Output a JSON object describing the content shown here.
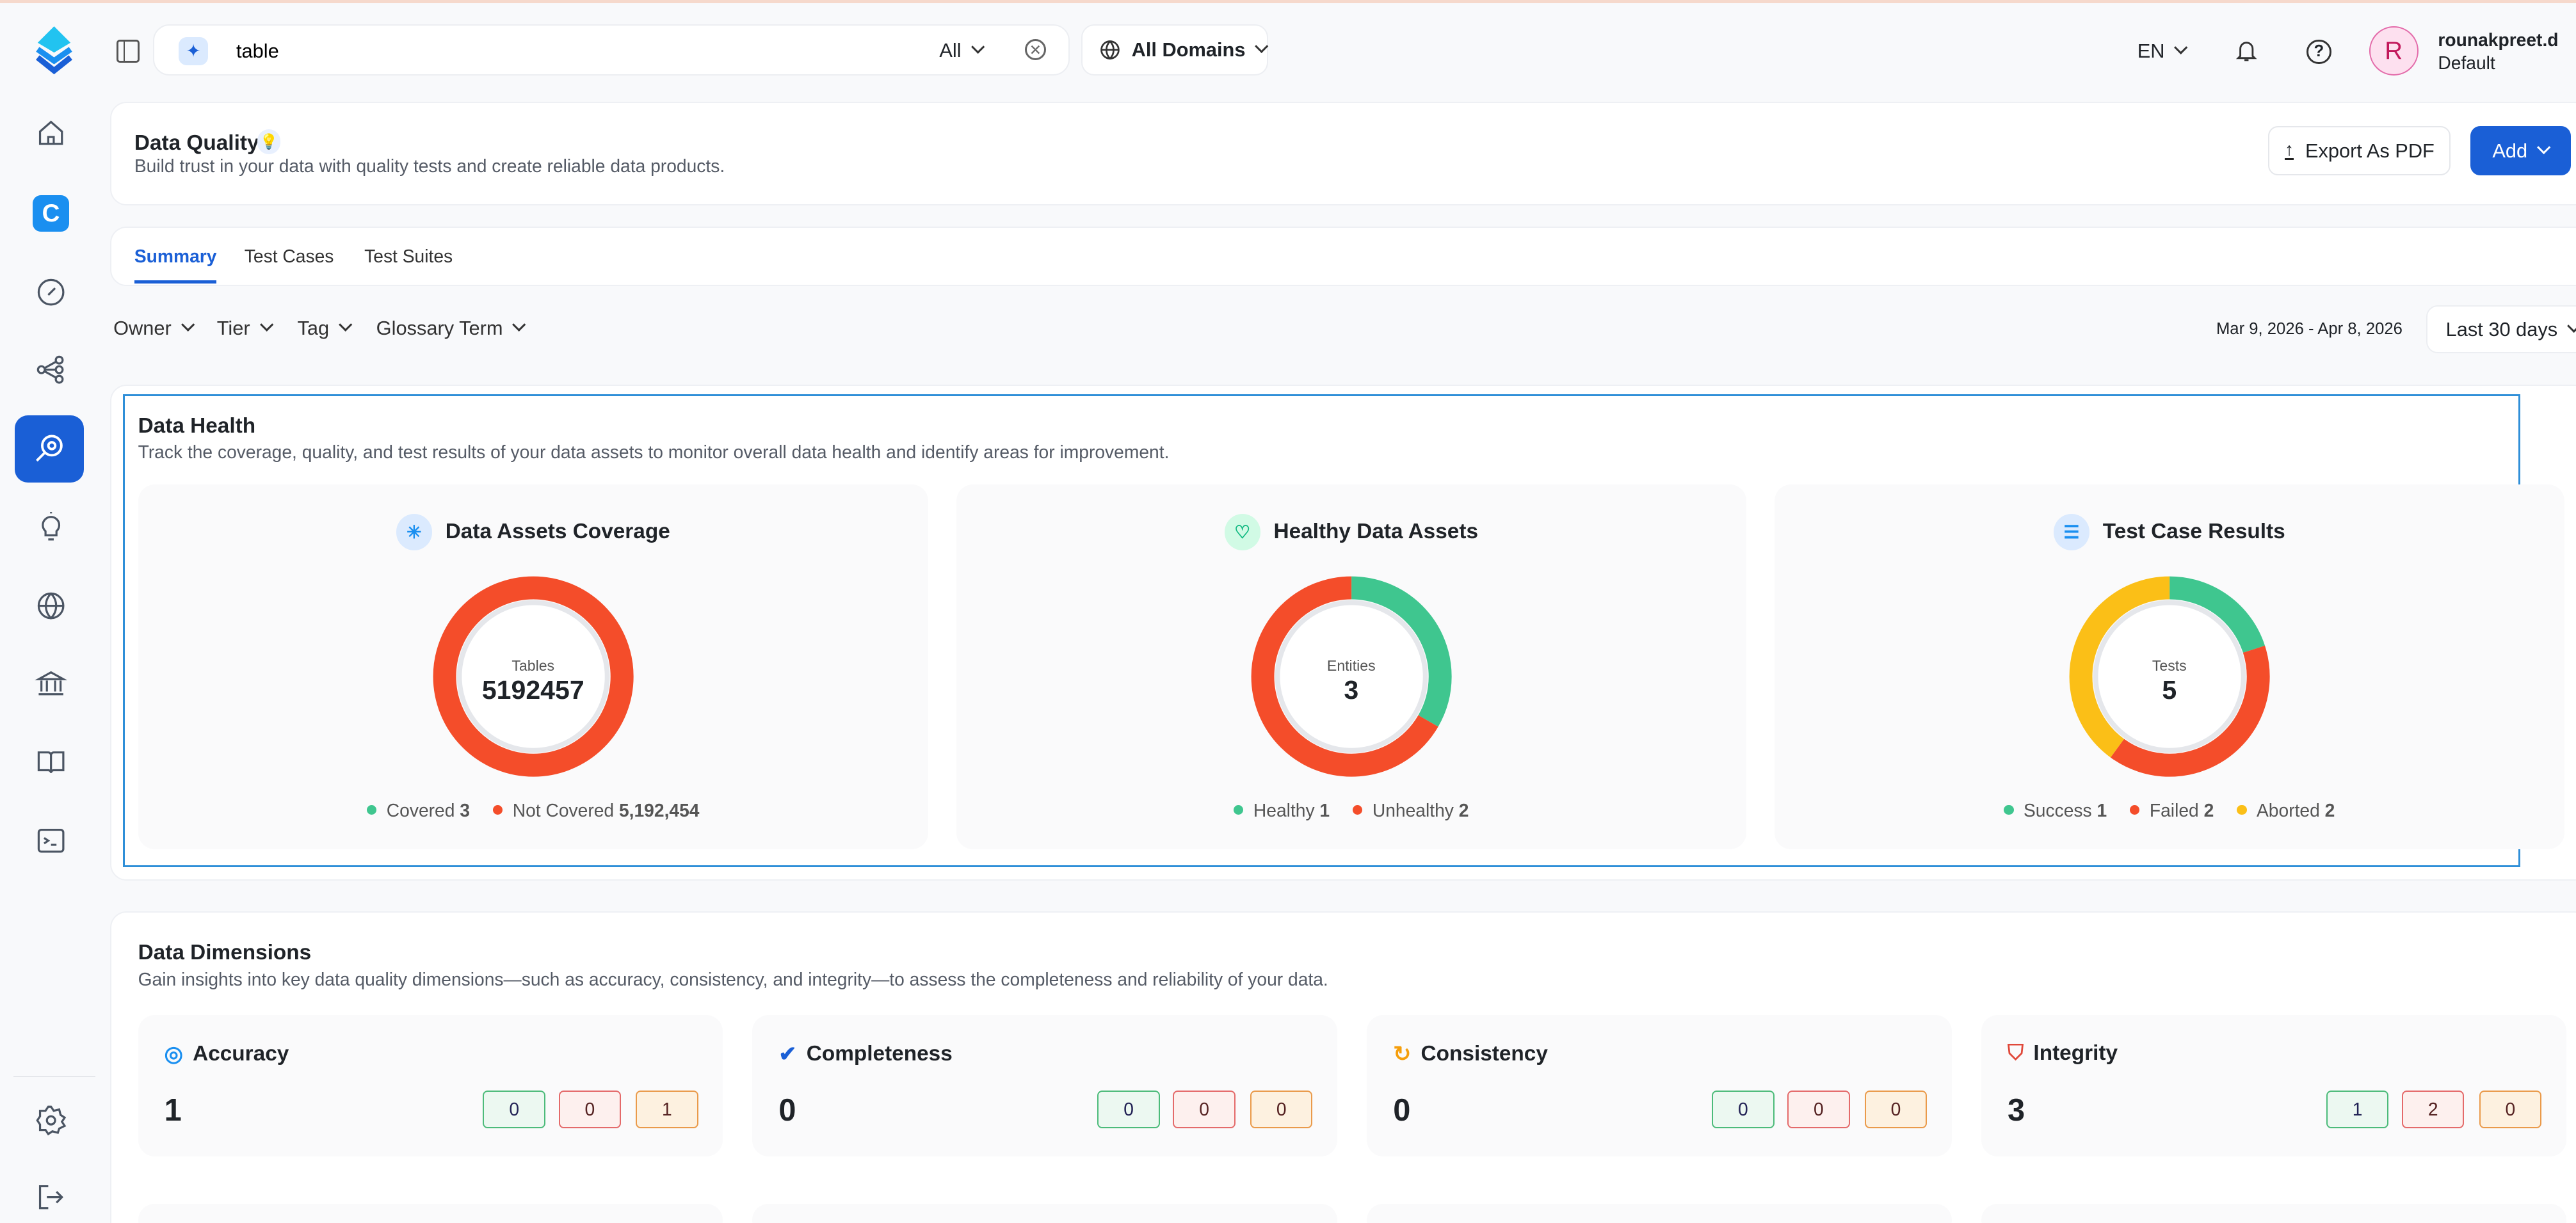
{
  "header": {
    "search_value": "table",
    "search_scope": "All",
    "domain": "All Domains",
    "language": "EN",
    "user_name": "rounakpreet.d",
    "user_role": "Default",
    "avatar_initial": "R"
  },
  "page": {
    "title": "Data Quality",
    "subtitle": "Build trust in your data with quality tests and create reliable data products.",
    "export_label": "Export As PDF",
    "add_label": "Add"
  },
  "tabs": [
    {
      "label": "Summary",
      "active": true
    },
    {
      "label": "Test Cases"
    },
    {
      "label": "Test Suites"
    }
  ],
  "filters": {
    "items": [
      "Owner",
      "Tier",
      "Tag",
      "Glossary Term"
    ],
    "date_range": "Mar 9, 2026 - Apr 8, 2026",
    "period": "Last 30 days"
  },
  "colors": {
    "accent": "#1a5fd6",
    "success": "#3fc68f",
    "failed": "#f44d2a",
    "aborted": "#fbbf17",
    "remaining": "#f44d2a"
  },
  "health": {
    "title": "Data Health",
    "description": "Track the coverage, quality, and test results of your data assets to monitor overall data health and identify areas for improvement.",
    "cards": [
      {
        "title": "Data Assets Coverage",
        "center_label": "Tables",
        "center_value": "5192457",
        "icon": "snowflake-icon",
        "segments": [
          {
            "label": "Covered",
            "value": 3,
            "display": "3",
            "color": "#3fc68f"
          },
          {
            "label": "Not Covered",
            "value": 5192454,
            "display": "5,192,454",
            "color": "#f44d2a"
          }
        ]
      },
      {
        "title": "Healthy Data Assets",
        "center_label": "Entities",
        "center_value": "3",
        "icon": "heart-pulse-icon",
        "segments": [
          {
            "label": "Healthy",
            "value": 1,
            "display": "1",
            "color": "#3fc68f"
          },
          {
            "label": "Unhealthy",
            "value": 2,
            "display": "2",
            "color": "#f44d2a"
          }
        ]
      },
      {
        "title": "Test Case Results",
        "center_label": "Tests",
        "center_value": "5",
        "icon": "checklist-icon",
        "segments": [
          {
            "label": "Success",
            "value": 1,
            "display": "1",
            "color": "#3fc68f"
          },
          {
            "label": "Failed",
            "value": 2,
            "display": "2",
            "color": "#f44d2a"
          },
          {
            "label": "Aborted",
            "value": 2,
            "display": "2",
            "color": "#fbbf17"
          }
        ]
      }
    ]
  },
  "dimensions": {
    "title": "Data Dimensions",
    "description": "Gain insights into key data quality dimensions—such as accuracy, consistency, and integrity—to assess the completeness and reliability of your data.",
    "items": [
      {
        "name": "Accuracy",
        "total": "1",
        "success": "0",
        "failed": "0",
        "aborted": "1",
        "icon": "target-icon"
      },
      {
        "name": "Completeness",
        "total": "0",
        "success": "0",
        "failed": "0",
        "aborted": "0",
        "icon": "badge-check-icon"
      },
      {
        "name": "Consistency",
        "total": "0",
        "success": "0",
        "failed": "0",
        "aborted": "0",
        "icon": "refresh-icon"
      },
      {
        "name": "Integrity",
        "total": "3",
        "success": "1",
        "failed": "2",
        "aborted": "0",
        "icon": "shield-icon"
      }
    ]
  }
}
